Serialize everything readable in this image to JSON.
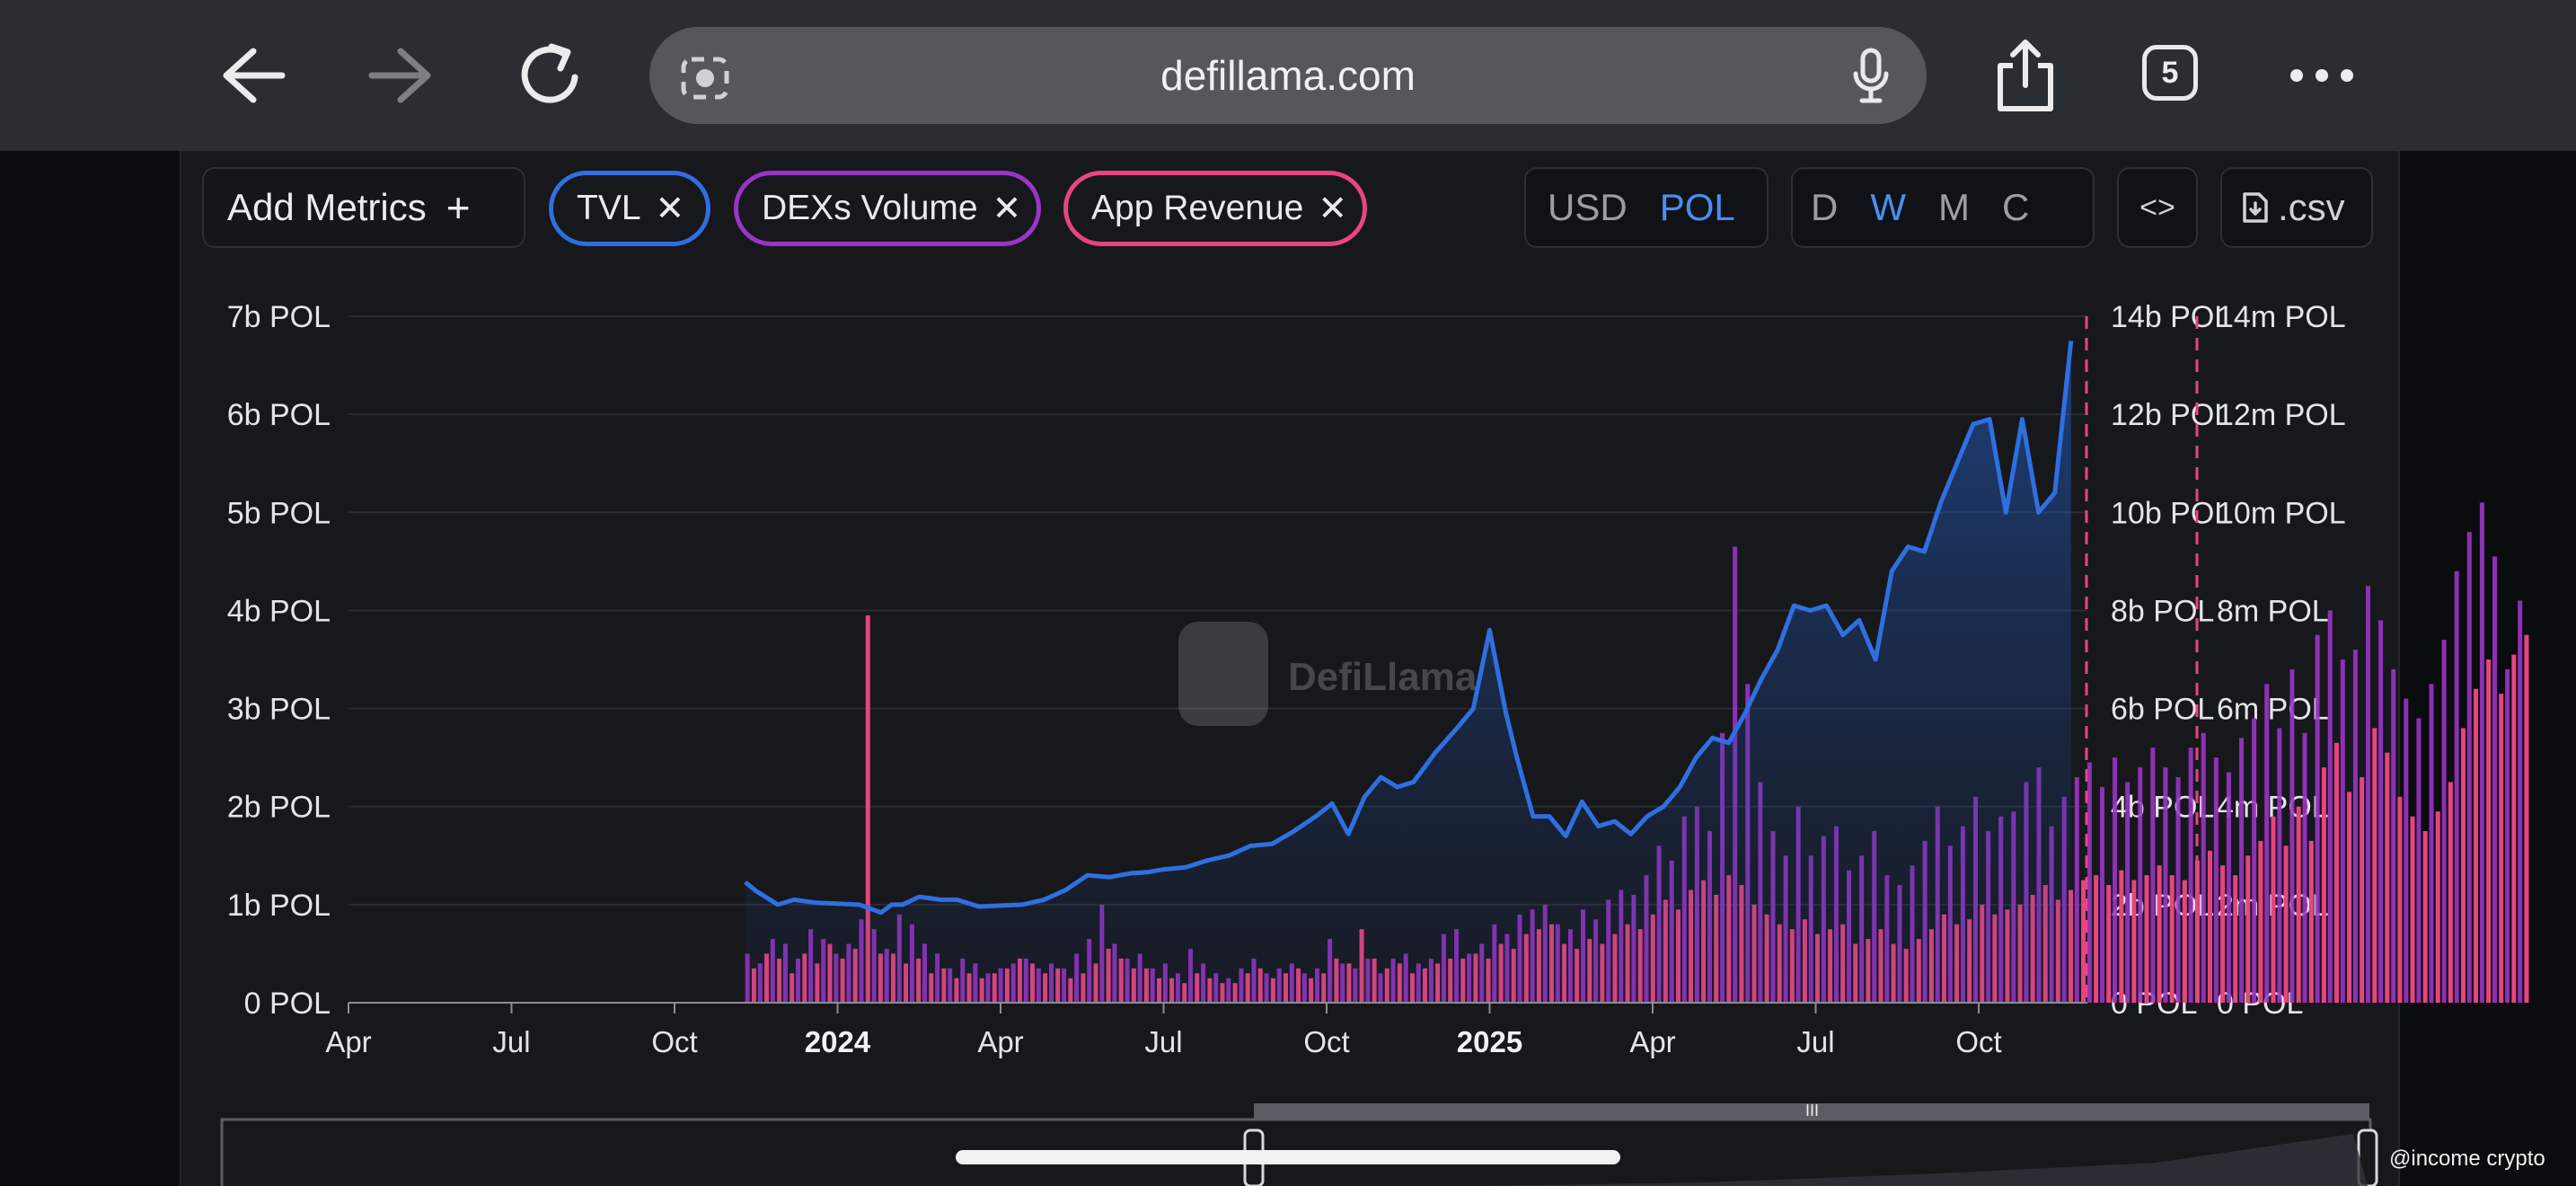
{
  "browser": {
    "url": "defillama.com",
    "tab_count": "5",
    "icons": [
      "back-arrow-icon",
      "forward-arrow-icon",
      "reload-icon",
      "lens-icon",
      "microphone-icon",
      "share-icon",
      "tabs-icon",
      "more-icon"
    ]
  },
  "toolbar": {
    "add_metrics_label": "Add Metrics",
    "add_icon": "+",
    "metrics": [
      {
        "label": "TVL",
        "color": "#2f6fe0"
      },
      {
        "label": "DEXs Volume",
        "color": "#9b34c9"
      },
      {
        "label": "App Revenue",
        "color": "#e8457e"
      }
    ],
    "close_icon": "✕",
    "currency": {
      "options": [
        "USD",
        "POL"
      ],
      "selected": "POL"
    },
    "granularity": {
      "options": [
        "D",
        "W",
        "M",
        "C"
      ],
      "selected": "W"
    },
    "embed_label": "<>",
    "csv_label": ".csv"
  },
  "watermark": "DefiLlama",
  "credit": "@income crypto",
  "chart_data": {
    "type": "area+bar",
    "x_ticks": [
      {
        "label": "Apr",
        "bold": false
      },
      {
        "label": "Jul",
        "bold": false
      },
      {
        "label": "Oct",
        "bold": false
      },
      {
        "label": "2024",
        "bold": true
      },
      {
        "label": "Apr",
        "bold": false
      },
      {
        "label": "Jul",
        "bold": false
      },
      {
        "label": "Oct",
        "bold": false
      },
      {
        "label": "2025",
        "bold": true
      },
      {
        "label": "Apr",
        "bold": false
      },
      {
        "label": "Jul",
        "bold": false
      },
      {
        "label": "Oct",
        "bold": false
      }
    ],
    "y_left_ticks": [
      "0 POL",
      "1b POL",
      "2b POL",
      "3b POL",
      "4b POL",
      "5b POL",
      "6b POL",
      "7b POL"
    ],
    "y_right1_ticks": [
      "0 POL",
      "2b POL",
      "4b POL",
      "6b POL",
      "8b POL",
      "10b POL",
      "12b POL",
      "14b POL"
    ],
    "y_right2_ticks": [
      "0 POL",
      "2m POL",
      "4m POL",
      "6m POL",
      "8m POL",
      "10m POL",
      "12m POL",
      "14m POL"
    ],
    "ylim_left": [
      0,
      7
    ],
    "ylim_right1": [
      0,
      14
    ],
    "ylim_right2": [
      0,
      14
    ],
    "units": {
      "left": "b POL",
      "right1": "b POL",
      "right2": "m POL"
    },
    "x_domain_months": [
      0,
      32
    ],
    "series": [
      {
        "name": "TVL",
        "axis": "left",
        "style": "area",
        "color": "#2f6fe0",
        "x": [
          7.3,
          7.5,
          7.9,
          8.2,
          8.6,
          9.0,
          9.4,
          9.8,
          10.0,
          10.2,
          10.5,
          10.9,
          11.2,
          11.6,
          12.0,
          12.4,
          12.8,
          13.2,
          13.6,
          14.0,
          14.4,
          14.7,
          15.0,
          15.4,
          15.8,
          16.2,
          16.6,
          17.0,
          17.4,
          17.8,
          18.1,
          18.4,
          18.7,
          19.0,
          19.3,
          19.6,
          20.0,
          20.4,
          20.7,
          21.0,
          21.3,
          21.5,
          21.8,
          22.1,
          22.4,
          22.7,
          23.0,
          23.3,
          23.6,
          23.9,
          24.2,
          24.5,
          24.8,
          25.1,
          25.4,
          25.7,
          26.0,
          26.3,
          26.6,
          26.9,
          27.2,
          27.5,
          27.8,
          28.1,
          28.4,
          28.7,
          29.0,
          29.3,
          29.6,
          29.9,
          30.2,
          30.5,
          30.8,
          31.1,
          31.4,
          31.7
        ],
        "values": [
          1.23,
          1.14,
          1.0,
          1.05,
          1.02,
          1.01,
          1.0,
          0.92,
          1.0,
          1.0,
          1.08,
          1.05,
          1.05,
          0.98,
          0.99,
          1.0,
          1.05,
          1.15,
          1.3,
          1.28,
          1.32,
          1.33,
          1.36,
          1.38,
          1.45,
          1.5,
          1.6,
          1.62,
          1.75,
          1.9,
          2.03,
          1.72,
          2.1,
          2.3,
          2.2,
          2.25,
          2.55,
          2.8,
          3.0,
          3.8,
          2.95,
          2.5,
          1.9,
          1.9,
          1.7,
          2.05,
          1.8,
          1.85,
          1.72,
          1.9,
          2.0,
          2.2,
          2.5,
          2.7,
          2.65,
          2.95,
          3.3,
          3.6,
          4.05,
          4.0,
          4.05,
          3.75,
          3.9,
          3.5,
          4.4,
          4.65,
          4.6,
          5.1,
          5.5,
          5.9,
          5.95,
          5.0,
          5.95,
          5.0,
          5.2,
          6.75
        ]
      },
      {
        "name": "DEXs Volume",
        "axis": "right1",
        "style": "bar",
        "color": "#9b34c9",
        "x_start": 7.3,
        "x_step": 0.233,
        "values": [
          1.0,
          0.8,
          1.3,
          1.2,
          0.9,
          1.5,
          1.3,
          1.0,
          1.2,
          1.7,
          1.5,
          1.1,
          1.8,
          1.6,
          1.2,
          1.0,
          0.7,
          0.9,
          0.8,
          0.6,
          0.7,
          0.8,
          0.9,
          0.7,
          0.8,
          0.7,
          1.0,
          1.3,
          2.0,
          1.2,
          0.9,
          1.0,
          0.7,
          0.8,
          0.6,
          1.1,
          0.8,
          0.6,
          0.5,
          0.7,
          0.9,
          0.6,
          0.7,
          0.8,
          0.6,
          0.7,
          1.3,
          0.8,
          0.7,
          0.9,
          0.6,
          0.9,
          1.0,
          0.8,
          0.9,
          1.4,
          1.5,
          1.0,
          1.2,
          1.6,
          1.4,
          1.8,
          1.9,
          2.0,
          1.6,
          1.5,
          1.9,
          1.7,
          2.1,
          2.3,
          2.2,
          2.6,
          3.2,
          2.9,
          3.8,
          4.0,
          3.5,
          5.5,
          9.3,
          6.5,
          4.5,
          3.5,
          3.0,
          4.0,
          3.0,
          3.4,
          3.6,
          2.7,
          3.0,
          3.5,
          2.6,
          2.4,
          2.8,
          3.3,
          4.0,
          3.2,
          3.6,
          4.2,
          3.5,
          3.8,
          3.9,
          4.5,
          4.8,
          3.6,
          4.2,
          4.6,
          4.9,
          4.4,
          5.0,
          4.5,
          4.8,
          5.2,
          4.8,
          4.6,
          5.2,
          5.5,
          5.0,
          4.7,
          5.4,
          5.8,
          6.5,
          5.6,
          6.8,
          5.5,
          7.5,
          8.0,
          7.0,
          7.2,
          8.5,
          7.8,
          6.8,
          6.2,
          5.8,
          6.5,
          7.4,
          8.8,
          9.6,
          10.2,
          9.1,
          6.8,
          8.2
        ]
      },
      {
        "name": "App Revenue",
        "axis": "right2",
        "style": "bar",
        "color": "#e8457e",
        "x_start": 7.42,
        "x_step": 0.233,
        "values": [
          0.7,
          1.0,
          0.9,
          0.6,
          1.0,
          0.8,
          1.2,
          0.9,
          1.1,
          7.9,
          1.0,
          1.0,
          0.8,
          0.9,
          0.6,
          0.7,
          0.5,
          0.6,
          0.5,
          0.6,
          0.7,
          0.9,
          0.8,
          0.6,
          0.7,
          0.5,
          0.6,
          0.8,
          1.1,
          0.9,
          0.7,
          0.7,
          0.5,
          0.5,
          0.4,
          0.6,
          0.5,
          0.4,
          0.4,
          0.6,
          0.7,
          0.5,
          0.6,
          0.7,
          0.5,
          0.6,
          0.9,
          0.8,
          1.5,
          0.9,
          0.7,
          0.8,
          0.6,
          0.7,
          0.8,
          0.9,
          0.9,
          1.0,
          0.9,
          1.2,
          1.1,
          1.4,
          1.5,
          1.6,
          1.2,
          1.1,
          1.3,
          1.2,
          1.4,
          1.6,
          1.5,
          1.8,
          2.1,
          1.9,
          2.3,
          2.5,
          2.2,
          2.6,
          2.4,
          2.0,
          1.8,
          1.6,
          1.5,
          1.7,
          1.4,
          1.5,
          1.6,
          1.2,
          1.3,
          1.5,
          1.2,
          1.1,
          1.3,
          1.5,
          1.8,
          1.6,
          1.7,
          2.0,
          1.8,
          1.9,
          2.0,
          2.2,
          2.4,
          2.1,
          2.3,
          2.5,
          2.6,
          2.4,
          2.7,
          2.5,
          2.6,
          2.8,
          2.6,
          2.5,
          2.9,
          3.1,
          2.8,
          2.6,
          3.0,
          3.3,
          3.8,
          3.2,
          4.0,
          3.3,
          4.8,
          5.3,
          4.3,
          4.6,
          5.6,
          5.1,
          4.2,
          3.8,
          3.5,
          3.9,
          4.5,
          5.6,
          6.4,
          7.0,
          6.3,
          7.1,
          7.5
        ]
      }
    ],
    "grid": true
  }
}
